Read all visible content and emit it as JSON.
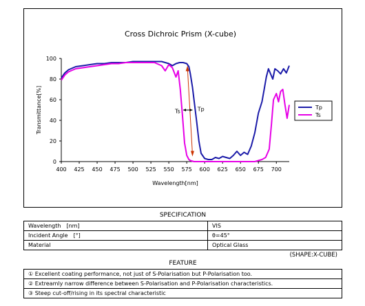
{
  "chart_data": {
    "type": "line",
    "title": "Cross Dichroic Prism (X-cube)",
    "xlabel": "Wavelength[nm]",
    "ylabel": "Transmittance[%]",
    "xlim": [
      400,
      718
    ],
    "ylim": [
      0,
      100
    ],
    "xticks": [
      400,
      425,
      450,
      475,
      500,
      525,
      550,
      575,
      600,
      625,
      650,
      675,
      700
    ],
    "yticks": [
      0,
      20,
      40,
      60,
      80,
      100
    ],
    "grid": false,
    "legend": "right",
    "series": [
      {
        "name": "Tp",
        "color": "#1a1aa8",
        "x": [
          400,
          405,
          410,
          420,
          430,
          440,
          450,
          460,
          470,
          480,
          490,
          500,
          510,
          520,
          530,
          540,
          545,
          550,
          555,
          560,
          565,
          570,
          575,
          578,
          580,
          583,
          586,
          589,
          592,
          595,
          600,
          605,
          610,
          615,
          620,
          625,
          630,
          635,
          640,
          645,
          650,
          655,
          660,
          665,
          670,
          675,
          680,
          683,
          686,
          689,
          692,
          695,
          698,
          702,
          706,
          710,
          714,
          718
        ],
        "y": [
          81,
          86,
          89,
          92,
          93,
          94,
          95,
          95,
          96,
          96,
          96,
          97,
          97,
          97,
          97,
          97,
          96,
          95,
          93,
          95,
          96,
          96,
          95,
          92,
          85,
          72,
          55,
          38,
          20,
          8,
          3,
          2,
          2,
          4,
          3,
          5,
          4,
          3,
          6,
          10,
          6,
          9,
          7,
          15,
          28,
          47,
          58,
          70,
          82,
          90,
          85,
          80,
          90,
          88,
          85,
          90,
          86,
          93
        ]
      },
      {
        "name": "Ts",
        "color": "#e600e6",
        "x": [
          400,
          405,
          410,
          420,
          430,
          440,
          450,
          460,
          470,
          480,
          490,
          500,
          510,
          520,
          530,
          540,
          545,
          550,
          555,
          560,
          563,
          566,
          569,
          572,
          575,
          578,
          580,
          585,
          590,
          600,
          610,
          620,
          630,
          640,
          650,
          660,
          665,
          670,
          675,
          680,
          685,
          690,
          693,
          696,
          700,
          703,
          706,
          709,
          712,
          715,
          718
        ],
        "y": [
          79,
          84,
          87,
          90,
          91,
          92,
          93,
          94,
          95,
          95,
          96,
          96,
          96,
          96,
          96,
          93,
          88,
          94,
          91,
          82,
          88,
          70,
          45,
          18,
          6,
          2,
          1,
          0,
          0,
          0,
          0,
          0,
          0,
          0,
          0,
          0,
          0,
          0,
          1,
          2,
          4,
          12,
          35,
          60,
          66,
          58,
          68,
          70,
          55,
          42,
          55
        ]
      }
    ],
    "annotations": [
      {
        "text": "Ts",
        "x": 566,
        "y": 49
      },
      {
        "text": "Tp",
        "x": 590,
        "y": 51
      }
    ]
  },
  "spec": {
    "title": "SPECIFICATION",
    "rows": [
      {
        "label": "Wavelength　[nm]",
        "value": "VIS"
      },
      {
        "label": "Incident Angle　[°]",
        "value": "θ=45°"
      },
      {
        "label": "Material",
        "value": "Optical Glass"
      }
    ],
    "shape_note": "(SHAPE:X-CUBE)"
  },
  "feature": {
    "title": "FEATURE",
    "items": [
      "① Excellent coating performance, not just of S-Polarisation but P-Polarisation too.",
      "② Extreamly narrow difference between S-Polarisation and P-Polarisation characteristics.",
      "③ Steep cut-off/rising in its spectral characteristic"
    ]
  }
}
